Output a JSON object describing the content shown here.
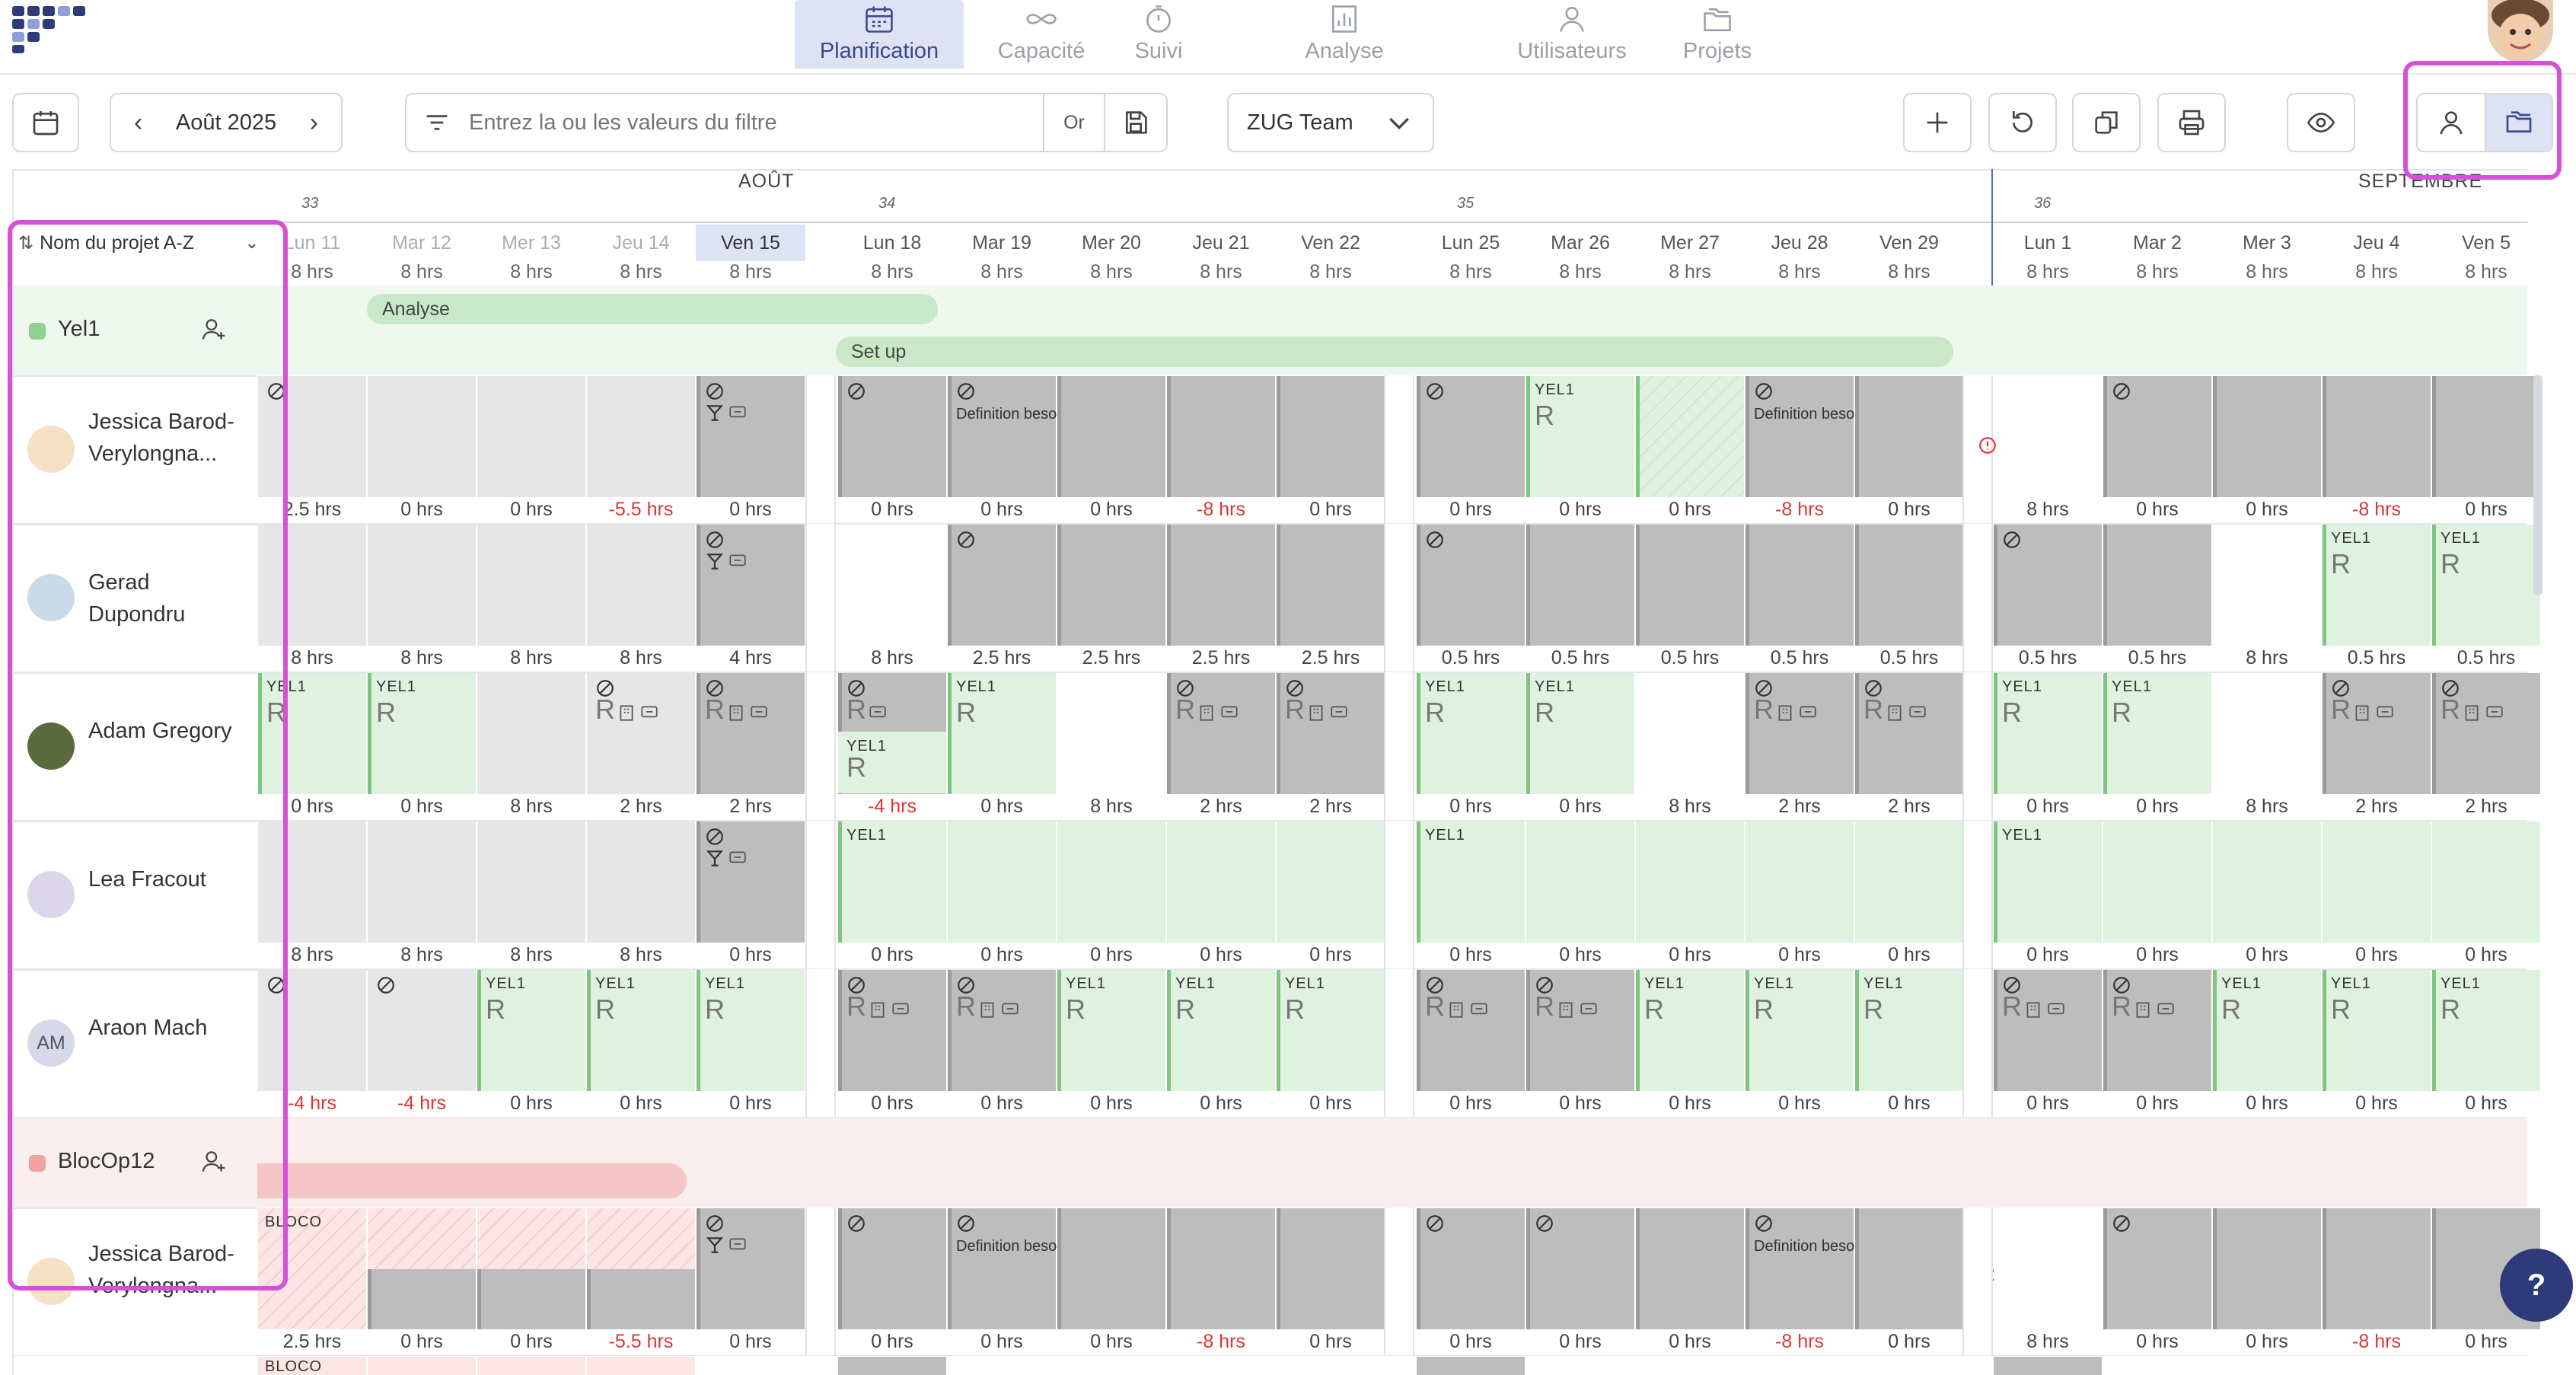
{
  "nav": {
    "items": [
      {
        "label": "Planification",
        "icon": "calendar-icon",
        "active": true
      },
      {
        "label": "Capacité",
        "icon": "infinity-icon"
      },
      {
        "label": "Suivi",
        "icon": "stopwatch-icon"
      },
      {
        "label": "Analyse",
        "icon": "bar-chart-icon"
      },
      {
        "label": "Utilisateurs",
        "icon": "user-icon"
      },
      {
        "label": "Projets",
        "icon": "folders-icon"
      }
    ]
  },
  "toolbar": {
    "month": "Août 2025",
    "filter_placeholder": "Entrez la ou les valeurs du filtre",
    "or_label": "Or",
    "team": "ZUG Team"
  },
  "calendar": {
    "month_labels": [
      "AOÛT",
      "SEPTEMBRE"
    ],
    "weeks": [
      "33",
      "34",
      "35",
      "36"
    ],
    "days": [
      "Lun 11",
      "Mar 12",
      "Mer 13",
      "Jeu 14",
      "Ven 15",
      "Lun 18",
      "Mar 19",
      "Mer 20",
      "Jeu 21",
      "Ven 22",
      "Lun 25",
      "Mar 26",
      "Mer 27",
      "Jeu 28",
      "Ven 29",
      "Lun 1",
      "Mar 2",
      "Mer 3",
      "Jeu 4",
      "Ven 5"
    ],
    "capacity_label": "8 hrs"
  },
  "sort": {
    "label": "Nom du projet A-Z"
  },
  "projects": [
    {
      "name": "Yel1",
      "color": "#8fd18f",
      "bars": [
        "Analyse",
        "Set up"
      ],
      "members": [
        {
          "name": "Jessica Barod-Verylongna...",
          "hours": [
            "2.5 hrs",
            "0 hrs",
            "0 hrs",
            "-5.5 hrs",
            "0 hrs",
            "0 hrs",
            "0 hrs",
            "0 hrs",
            "-8 hrs",
            "0 hrs",
            "0 hrs",
            "0 hrs",
            "0 hrs",
            "-8 hrs",
            "0 hrs",
            "8 hrs",
            "0 hrs",
            "0 hrs",
            "-8 hrs",
            "0 hrs"
          ]
        },
        {
          "name": "Gerad Dupondru",
          "hours": [
            "8 hrs",
            "8 hrs",
            "8 hrs",
            "8 hrs",
            "4 hrs",
            "8 hrs",
            "2.5 hrs",
            "2.5 hrs",
            "2.5 hrs",
            "2.5 hrs",
            "0.5 hrs",
            "0.5 hrs",
            "0.5 hrs",
            "0.5 hrs",
            "0.5 hrs",
            "0.5 hrs",
            "0.5 hrs",
            "8 hrs",
            "0.5 hrs",
            "0.5 hrs"
          ]
        },
        {
          "name": "Adam Gregory",
          "hours": [
            "0 hrs",
            "0 hrs",
            "8 hrs",
            "2 hrs",
            "2 hrs",
            "-4 hrs",
            "0 hrs",
            "8 hrs",
            "2 hrs",
            "2 hrs",
            "0 hrs",
            "0 hrs",
            "8 hrs",
            "2 hrs",
            "2 hrs",
            "0 hrs",
            "0 hrs",
            "8 hrs",
            "2 hrs",
            "2 hrs"
          ]
        },
        {
          "name": "Lea Fracout",
          "hours": [
            "8 hrs",
            "8 hrs",
            "8 hrs",
            "8 hrs",
            "0 hrs",
            "0 hrs",
            "0 hrs",
            "0 hrs",
            "0 hrs",
            "0 hrs",
            "0 hrs",
            "0 hrs",
            "0 hrs",
            "0 hrs",
            "0 hrs",
            "0 hrs",
            "0 hrs",
            "0 hrs",
            "0 hrs",
            "0 hrs"
          ]
        },
        {
          "name": "Araon Mach",
          "initials": "AM",
          "hours": [
            "-4 hrs",
            "-4 hrs",
            "0 hrs",
            "0 hrs",
            "0 hrs",
            "0 hrs",
            "0 hrs",
            "0 hrs",
            "0 hrs",
            "0 hrs",
            "0 hrs",
            "0 hrs",
            "0 hrs",
            "0 hrs",
            "0 hrs",
            "0 hrs",
            "0 hrs",
            "0 hrs",
            "0 hrs",
            "0 hrs"
          ]
        }
      ]
    },
    {
      "name": "BlocOp12",
      "color": "#f0a3a3",
      "bars": [
        ""
      ],
      "members": [
        {
          "name": "Jessica Barod-Verylongna...",
          "hours": [
            "2.5 hrs",
            "0 hrs",
            "0 hrs",
            "-5.5 hrs",
            "0 hrs",
            "0 hrs",
            "0 hrs",
            "0 hrs",
            "-8 hrs",
            "0 hrs",
            "0 hrs",
            "0 hrs",
            "0 hrs",
            "-8 hrs",
            "0 hrs",
            "8 hrs",
            "0 hrs",
            "0 hrs",
            "-8 hrs",
            "0 hrs"
          ]
        }
      ]
    }
  ],
  "labels": {
    "yel1": "YEL1",
    "bloco": "BLOCO",
    "definition": "Definition besoin",
    "resource_letter": "R"
  },
  "help": "?"
}
